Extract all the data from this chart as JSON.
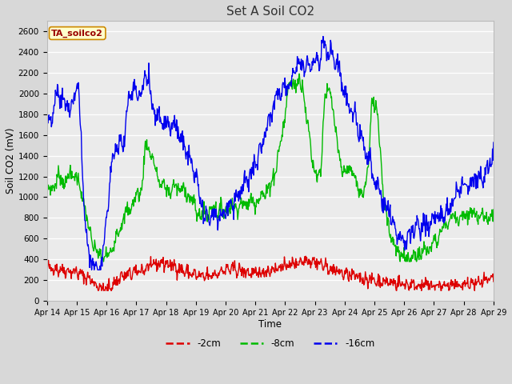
{
  "title": "Set A Soil CO2",
  "xlabel": "Time",
  "ylabel": "Soil CO2 (mV)",
  "ylim": [
    0,
    2700
  ],
  "yticks": [
    0,
    200,
    400,
    600,
    800,
    1000,
    1200,
    1400,
    1600,
    1800,
    2000,
    2200,
    2400,
    2600
  ],
  "legend_label": "TA_soilco2",
  "series_labels": [
    "-2cm",
    "-8cm",
    "-16cm"
  ],
  "series_colors": [
    "#dd0000",
    "#00bb00",
    "#0000ee"
  ],
  "line_width": 1.0,
  "bg_color": "#d8d8d8",
  "plot_bg_color": "#ebebeb",
  "n_points": 900,
  "x_tick_labels": [
    "Apr 14",
    "Apr 15",
    "Apr 16",
    "Apr 17",
    "Apr 18",
    "Apr 19",
    "Apr 20",
    "Apr 21",
    "Apr 22",
    "Apr 23",
    "Apr 24",
    "Apr 25",
    "Apr 26",
    "Apr 27",
    "Apr 28",
    "Apr 29"
  ]
}
